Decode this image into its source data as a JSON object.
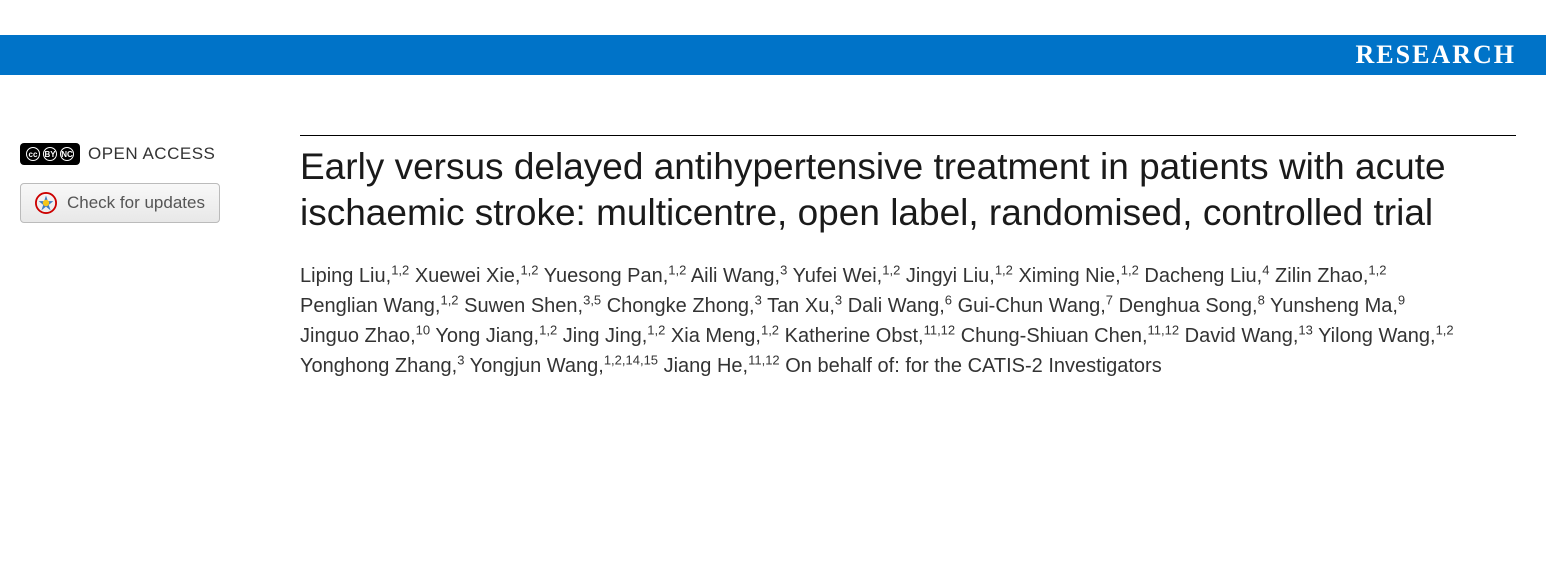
{
  "header": {
    "section_label": "RESEARCH",
    "bar_color": "#0073c8",
    "text_color": "#ffffff"
  },
  "badges": {
    "open_access_label": "OPEN ACCESS",
    "check_updates_label": "Check for updates",
    "cc_glyph": "cc",
    "by_glyph": "BY",
    "nc_glyph": "NC"
  },
  "article": {
    "title": "Early versus delayed antihypertensive treatment in patients with acute ischaemic stroke: multicentre, open label, randomised, controlled trial"
  },
  "authors": [
    {
      "name": "Liping Liu",
      "affil": "1,2"
    },
    {
      "name": "Xuewei Xie",
      "affil": "1,2"
    },
    {
      "name": "Yuesong Pan",
      "affil": "1,2"
    },
    {
      "name": "Aili Wang",
      "affil": "3"
    },
    {
      "name": "Yufei Wei",
      "affil": "1,2"
    },
    {
      "name": "Jingyi Liu",
      "affil": "1,2"
    },
    {
      "name": "Ximing Nie",
      "affil": "1,2"
    },
    {
      "name": "Dacheng Liu",
      "affil": "4"
    },
    {
      "name": "Zilin Zhao",
      "affil": "1,2"
    },
    {
      "name": "Penglian Wang",
      "affil": "1,2"
    },
    {
      "name": "Suwen Shen",
      "affil": "3,5"
    },
    {
      "name": "Chongke Zhong",
      "affil": "3"
    },
    {
      "name": "Tan Xu",
      "affil": "3"
    },
    {
      "name": "Dali Wang",
      "affil": "6"
    },
    {
      "name": "Gui-Chun Wang",
      "affil": "7"
    },
    {
      "name": "Denghua Song",
      "affil": "8"
    },
    {
      "name": "Yunsheng Ma",
      "affil": "9"
    },
    {
      "name": "Jinguo Zhao",
      "affil": "10"
    },
    {
      "name": "Yong Jiang",
      "affil": "1,2"
    },
    {
      "name": "Jing Jing",
      "affil": "1,2"
    },
    {
      "name": "Xia Meng",
      "affil": "1,2"
    },
    {
      "name": "Katherine Obst",
      "affil": "11,12"
    },
    {
      "name": "Chung-Shiuan Chen",
      "affil": "11,12"
    },
    {
      "name": "David Wang",
      "affil": "13"
    },
    {
      "name": "Yilong Wang",
      "affil": "1,2"
    },
    {
      "name": "Yonghong Zhang",
      "affil": "3"
    },
    {
      "name": "Yongjun Wang",
      "affil": "1,2,14,15"
    },
    {
      "name": "Jiang He",
      "affil": "11,12"
    }
  ],
  "author_trailing": "On behalf of: for the CATIS-2 Investigators",
  "colors": {
    "background": "#ffffff",
    "text_primary": "#1a1a1a",
    "text_secondary": "#333333",
    "button_border": "#bbbbbb",
    "button_text": "#555555",
    "title_border": "#000000"
  },
  "typography": {
    "header_fontsize": 26,
    "title_fontsize": 37,
    "authors_fontsize": 20,
    "affil_fontsize": 13,
    "badge_fontsize": 17
  }
}
